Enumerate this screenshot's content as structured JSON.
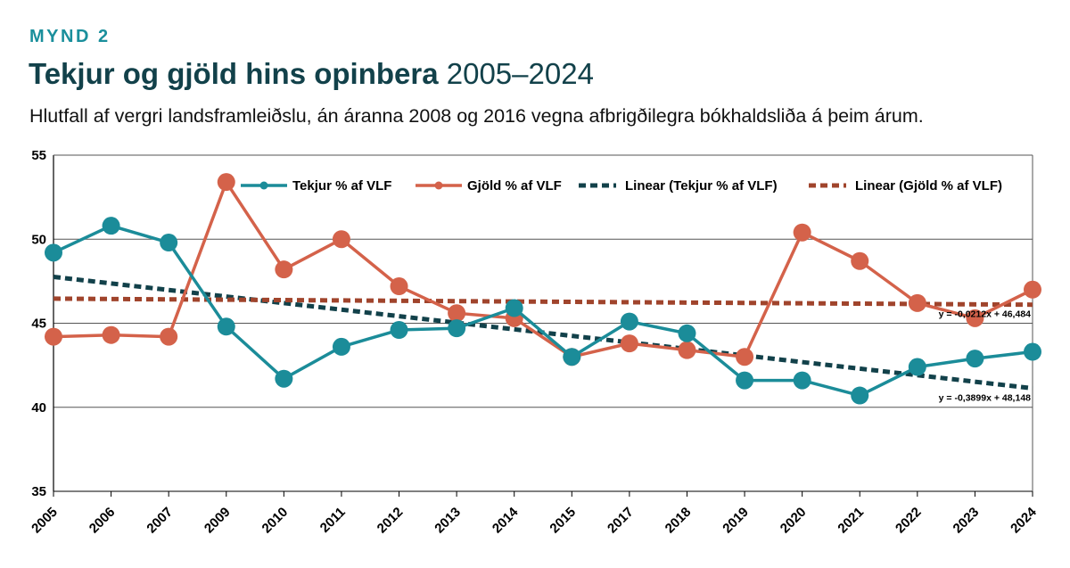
{
  "header": {
    "kicker": "MYND 2",
    "title_bold": "Tekjur og gjöld hins opinbera",
    "title_years": "2005–2024",
    "subtitle": "Hlutfall af vergri landsframleiðslu, án áranna 2008 og 2016 vegna afbrigðilegra bókhaldsliða á þeim árum."
  },
  "chart_data": {
    "type": "line",
    "categories": [
      "2005",
      "2006",
      "2007",
      "2009",
      "2010",
      "2011",
      "2012",
      "2013",
      "2014",
      "2015",
      "2017",
      "2018",
      "2019",
      "2020",
      "2021",
      "2022",
      "2023",
      "2024"
    ],
    "ylim": [
      35,
      55
    ],
    "yticks": [
      35,
      40,
      45,
      50,
      55
    ],
    "grid": true,
    "legend_position": "top",
    "series": [
      {
        "name": "Tekjur % af VLF",
        "color": "#1b8c99",
        "values": [
          49.2,
          50.8,
          49.8,
          44.8,
          41.7,
          43.6,
          44.6,
          44.7,
          45.9,
          43.0,
          45.1,
          44.4,
          41.6,
          41.6,
          40.7,
          42.4,
          42.9,
          43.3
        ]
      },
      {
        "name": "Gjöld % af VLF",
        "color": "#d4624a",
        "values": [
          44.2,
          44.3,
          44.2,
          53.4,
          48.2,
          50.0,
          47.2,
          45.6,
          45.3,
          43.0,
          43.8,
          43.4,
          43.0,
          50.4,
          48.7,
          46.2,
          45.3,
          47.0
        ]
      }
    ],
    "trendlines": [
      {
        "name": "Linear (Tekjur % af VLF)",
        "color": "#12414a",
        "slope": -0.3899,
        "intercept": 48.148,
        "equation": "y = -0,3899x + 48,148"
      },
      {
        "name": "Linear (Gjöld % af VLF)",
        "color": "#a0442c",
        "slope": -0.0212,
        "intercept": 46.484,
        "equation": "y = -0,0212x + 46,484"
      }
    ]
  }
}
